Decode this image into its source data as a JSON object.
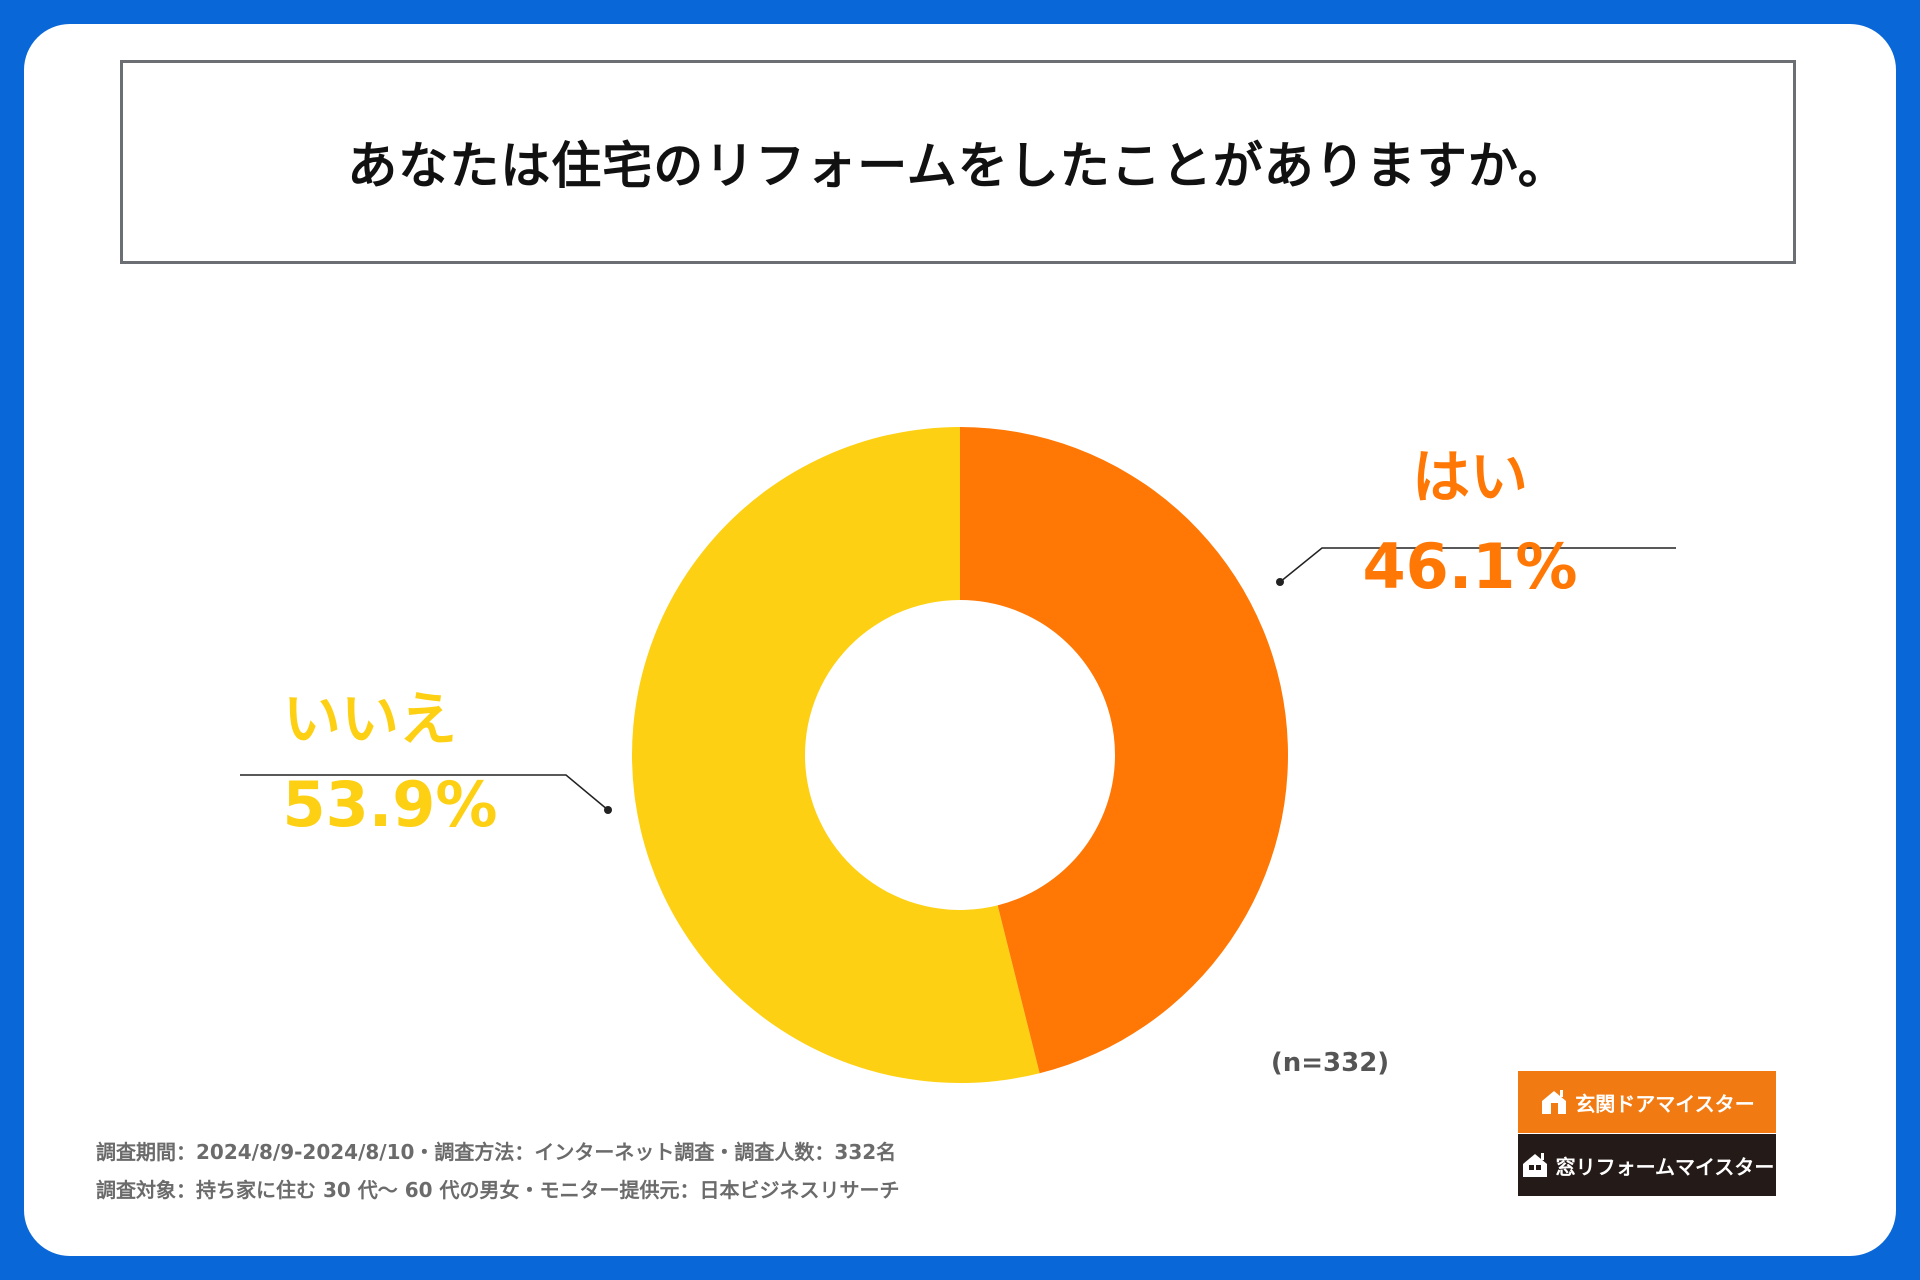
{
  "title": "あなたは住宅のリフォームをしたことがありますか。",
  "chart_data": {
    "type": "pie",
    "variant": "donut",
    "title": "あなたは住宅のリフォームをしたことがありますか。",
    "slices": [
      {
        "label": "はい",
        "value": 46.1,
        "display": "46.1%",
        "color": "#ff7704"
      },
      {
        "label": "いいえ",
        "value": 53.9,
        "display": "53.9%",
        "color": "#fdd013"
      }
    ],
    "n_label": "(n=332)"
  },
  "footnotes": {
    "line1": "調査期間：2024/8/9-2024/8/10・調査方法：インターネット調査・調査人数：332名",
    "line2": "調査対象：持ち家に住む 30 代～ 60 代の男女・モニター提供元：日本ビジネスリサーチ"
  },
  "logos": {
    "door": {
      "label": "玄関ドアマイスター",
      "icon": "house-door-icon",
      "color": "#f27a12"
    },
    "window": {
      "label": "窓リフォームマイスター",
      "icon": "house-window-icon",
      "color": "#241a17"
    }
  }
}
